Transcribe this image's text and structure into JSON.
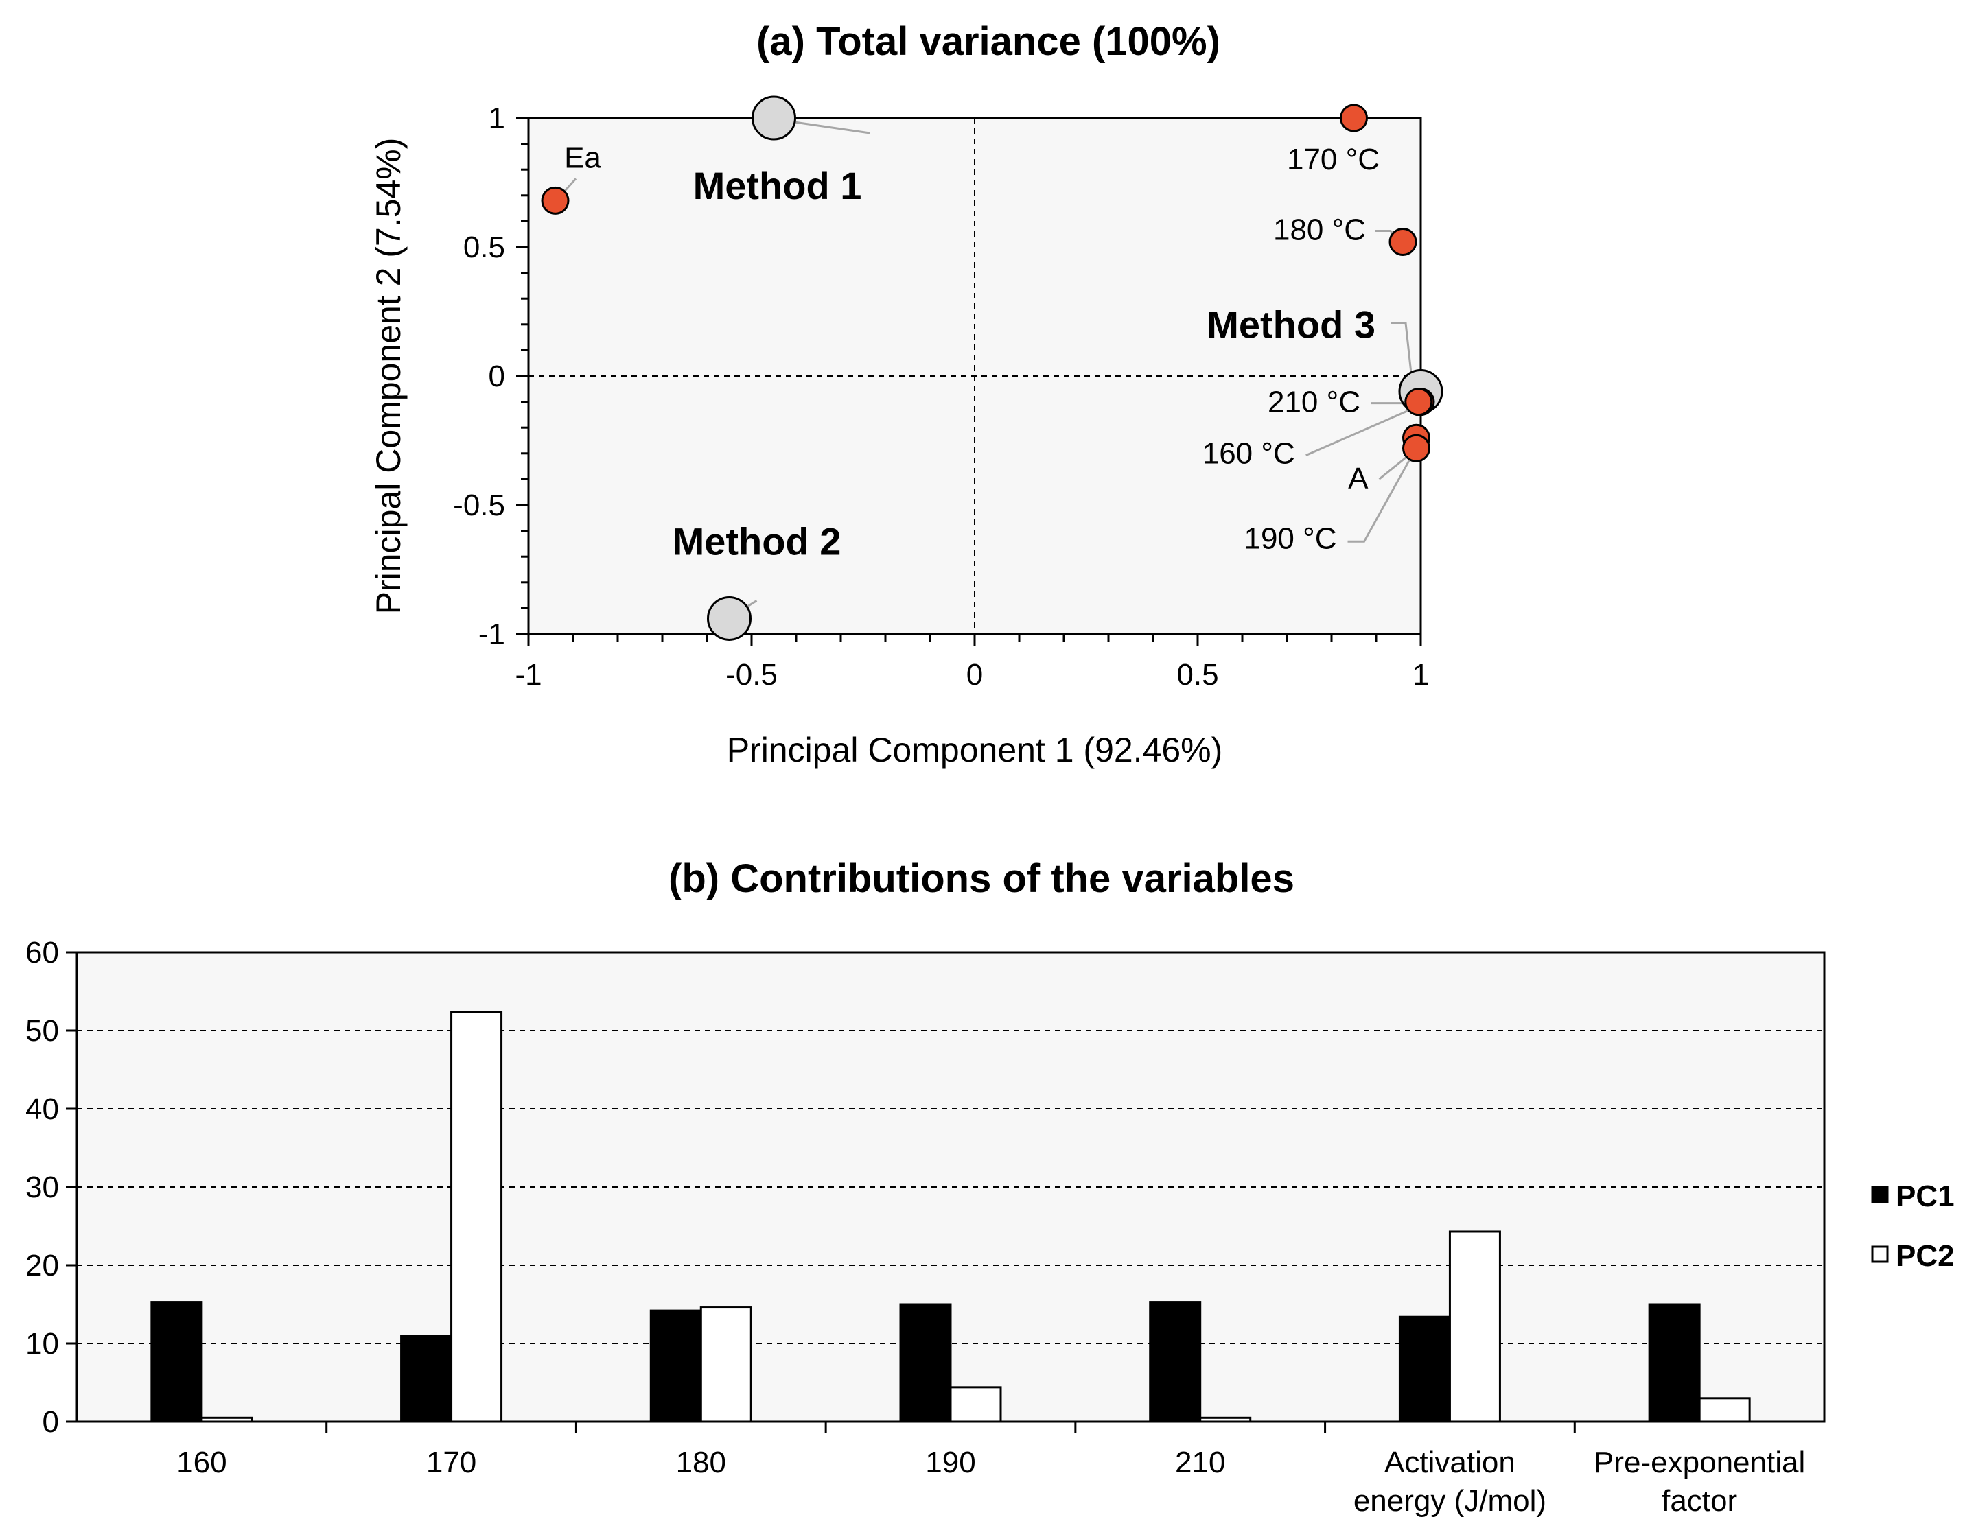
{
  "chart_data": [
    {
      "type": "scatter",
      "title": "(a) Total variance (100%)",
      "xlabel": "Principal Component 1 (92.46%)",
      "ylabel": "Principal Component 2 (7.54%)",
      "xlim": [
        -1,
        1
      ],
      "ylim": [
        -1,
        1
      ],
      "xticks": [
        "-1",
        "-0.5",
        "0",
        "0.5",
        "1"
      ],
      "yticks": [
        "-1",
        "-0.5",
        "0",
        "0.5",
        "1"
      ],
      "grid": false,
      "point_color": "#e8512f",
      "method_color": "#d9d9d9",
      "variables": [
        {
          "label": "Ea",
          "x": -0.94,
          "y": 0.68
        },
        {
          "label": "170 °C",
          "x": 0.85,
          "y": 1.0
        },
        {
          "label": "180 °C",
          "x": 0.96,
          "y": 0.52
        },
        {
          "label": "210 °C",
          "x": 1.0,
          "y": -0.1
        },
        {
          "label": "160 °C",
          "x": 0.995,
          "y": -0.1
        },
        {
          "label": "A",
          "x": 0.99,
          "y": -0.24
        },
        {
          "label": "190 °C",
          "x": 0.99,
          "y": -0.28
        }
      ],
      "methods": [
        {
          "label": "Method 1",
          "x": -0.45,
          "y": 1.0
        },
        {
          "label": "Method 2",
          "x": -0.55,
          "y": -0.94
        },
        {
          "label": "Method 3",
          "x": 1.0,
          "y": -0.06
        }
      ]
    },
    {
      "type": "bar",
      "title": "(b) Contributions of the variables",
      "categories": [
        "160",
        "170",
        "180",
        "190",
        "210",
        "Activation energy (J/mol)",
        "Pre-exponential factor"
      ],
      "category_lines": [
        [
          "160"
        ],
        [
          "170"
        ],
        [
          "180"
        ],
        [
          "190"
        ],
        [
          "210"
        ],
        [
          "Activation",
          "energy (J/mol)"
        ],
        [
          "Pre-exponential",
          "factor"
        ]
      ],
      "series": [
        {
          "name": "PC1",
          "values": [
            15.3,
            11.0,
            14.2,
            15.0,
            15.3,
            13.4,
            15.0
          ],
          "fill": "#000000"
        },
        {
          "name": "PC2",
          "values": [
            0.5,
            52.4,
            14.6,
            4.4,
            0.5,
            24.3,
            3.0
          ],
          "fill": "#ffffff"
        }
      ],
      "ylim": [
        0,
        60
      ],
      "yticks": [
        0,
        10,
        20,
        30,
        40,
        50,
        60
      ],
      "grid": true,
      "legend": "right"
    }
  ]
}
